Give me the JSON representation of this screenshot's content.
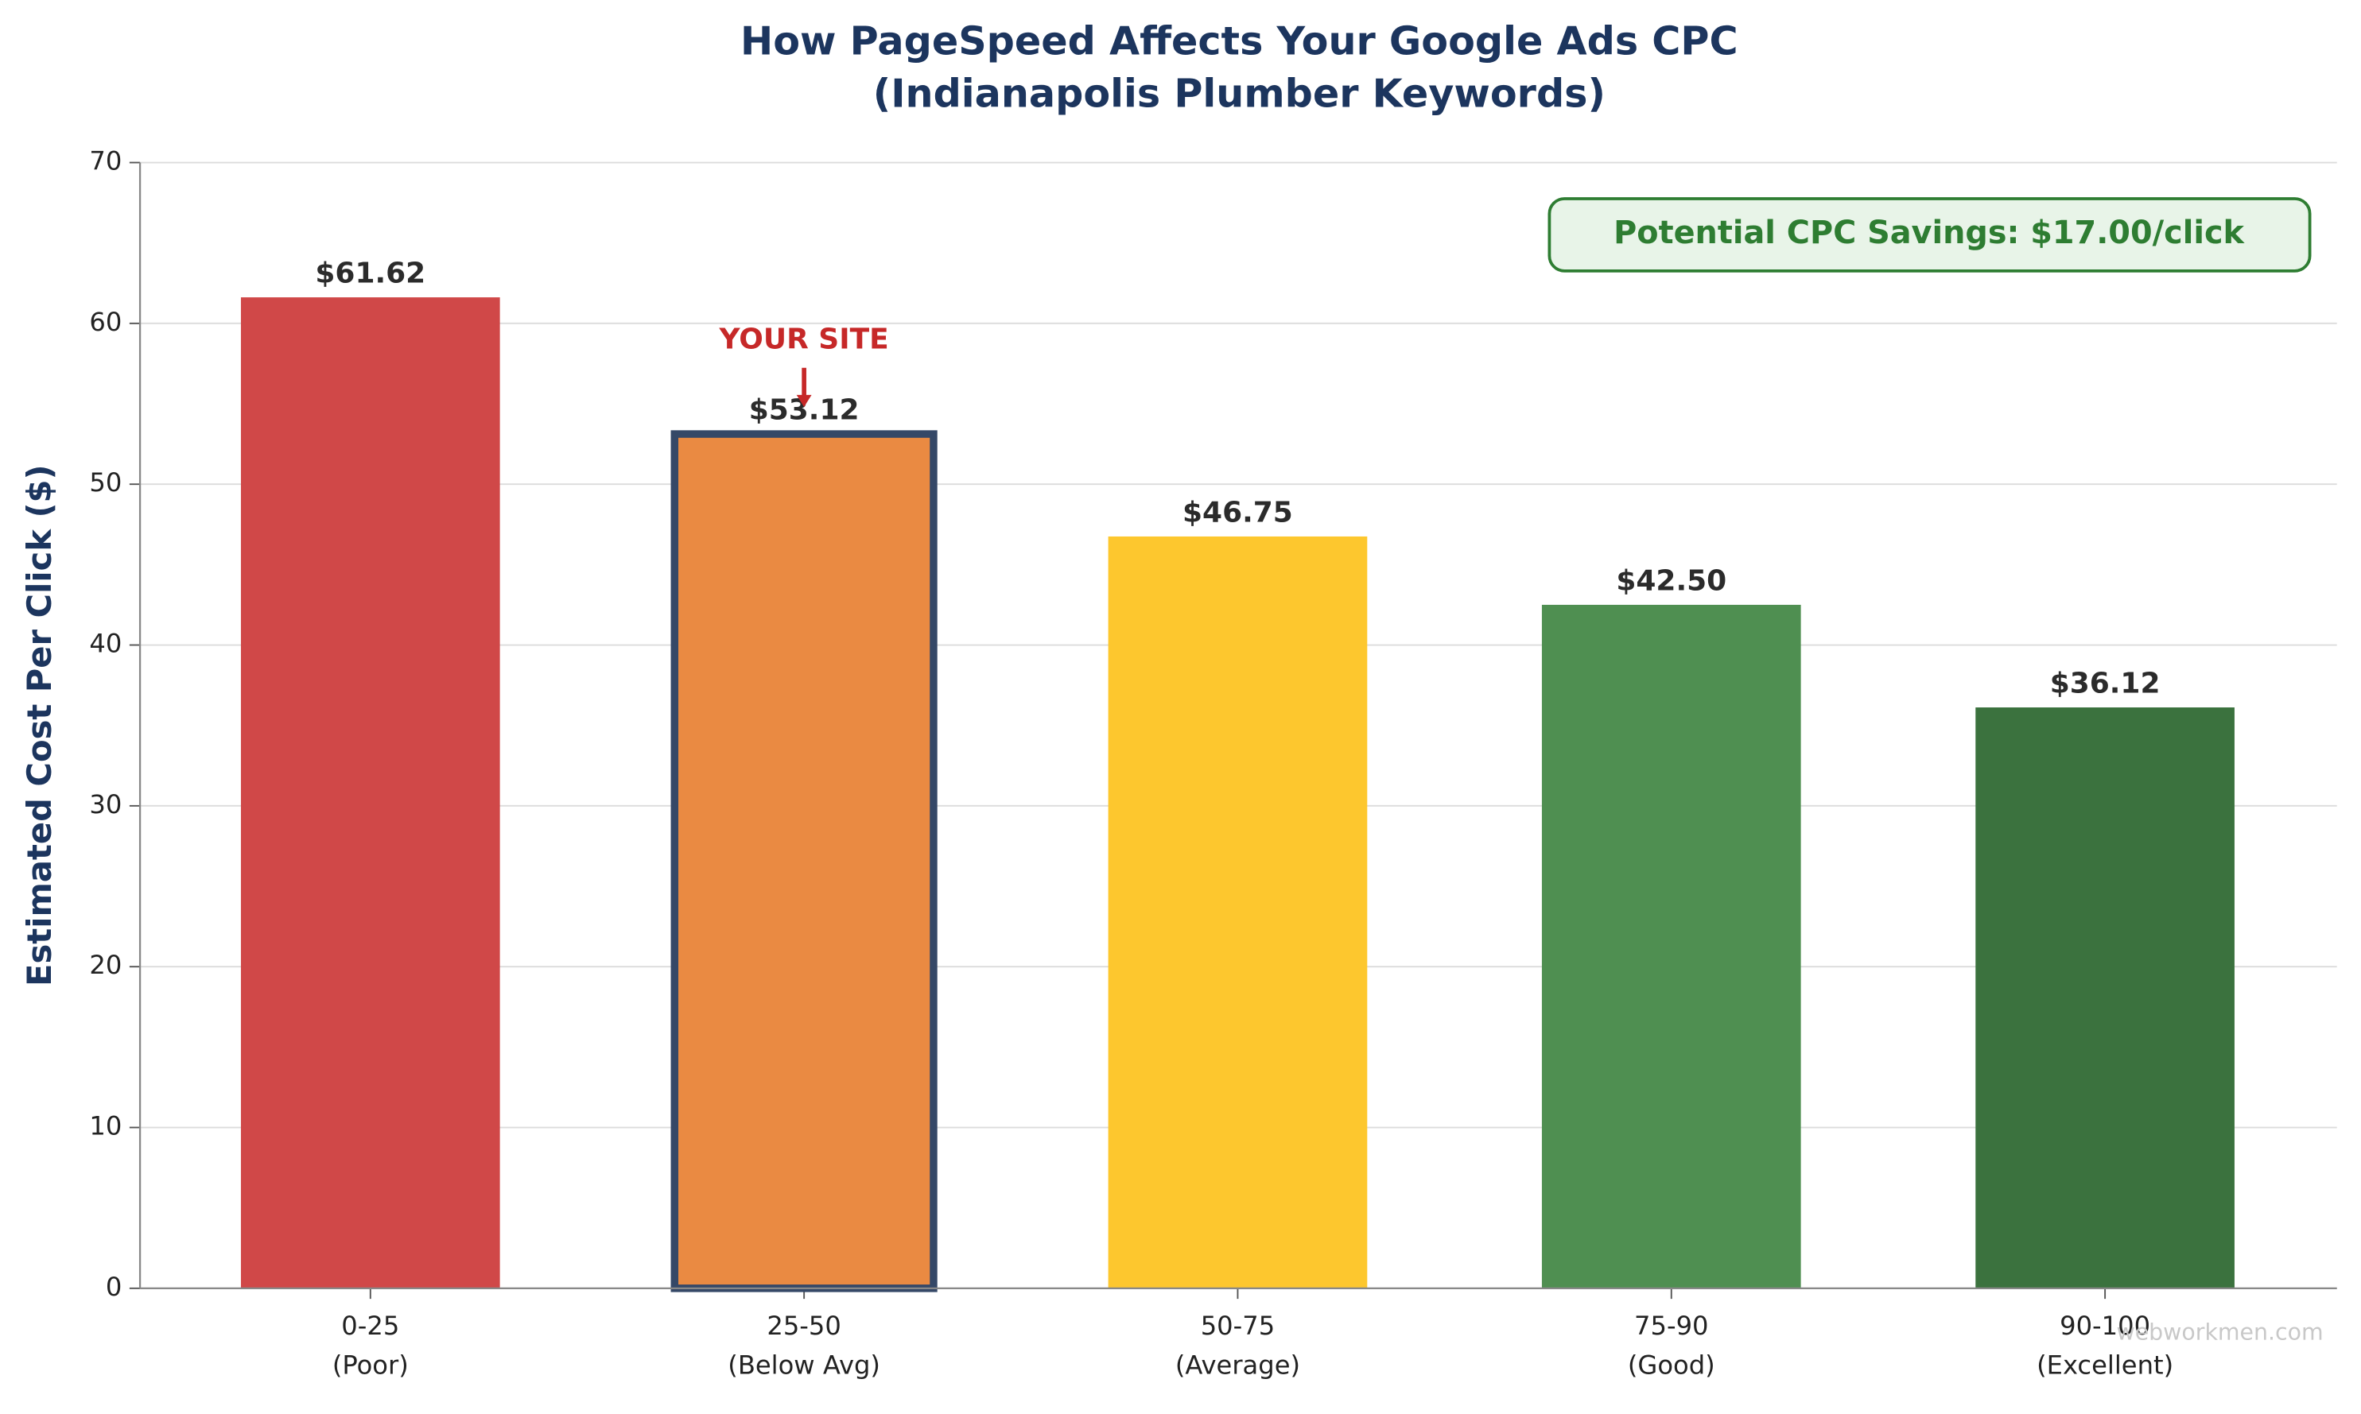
{
  "chart_data": {
    "type": "bar",
    "title": "How PageSpeed Affects Your Google Ads CPC",
    "subtitle": "(Indianapolis Plumber Keywords)",
    "y_label": "Estimated Cost Per Click ($)",
    "categories": [
      "0-25",
      "25-50",
      "50-75",
      "75-90",
      "90-100"
    ],
    "category_notes": [
      "(Poor)",
      "(Below Avg)",
      "(Average)",
      "(Good)",
      "(Excellent)"
    ],
    "values": [
      61.62,
      53.12,
      46.75,
      42.5,
      36.12
    ],
    "value_labels": [
      "$61.62",
      "$53.12",
      "$46.75",
      "$42.50",
      "$36.12"
    ],
    "colors": [
      "#d04848",
      "#ea8a42",
      "#fdc72e",
      "#4f8f51",
      "#3b723e"
    ],
    "highlight": {
      "index": 1,
      "label": "YOUR SITE",
      "color": "#c62828",
      "border": "#354867"
    },
    "annotation": "Potential CPC Savings: $17.00/click",
    "watermark": "webworkmen.com",
    "ylim": [
      0,
      70
    ],
    "yticks": [
      0,
      10,
      20,
      30,
      40,
      50,
      60,
      70
    ],
    "grid": true
  }
}
